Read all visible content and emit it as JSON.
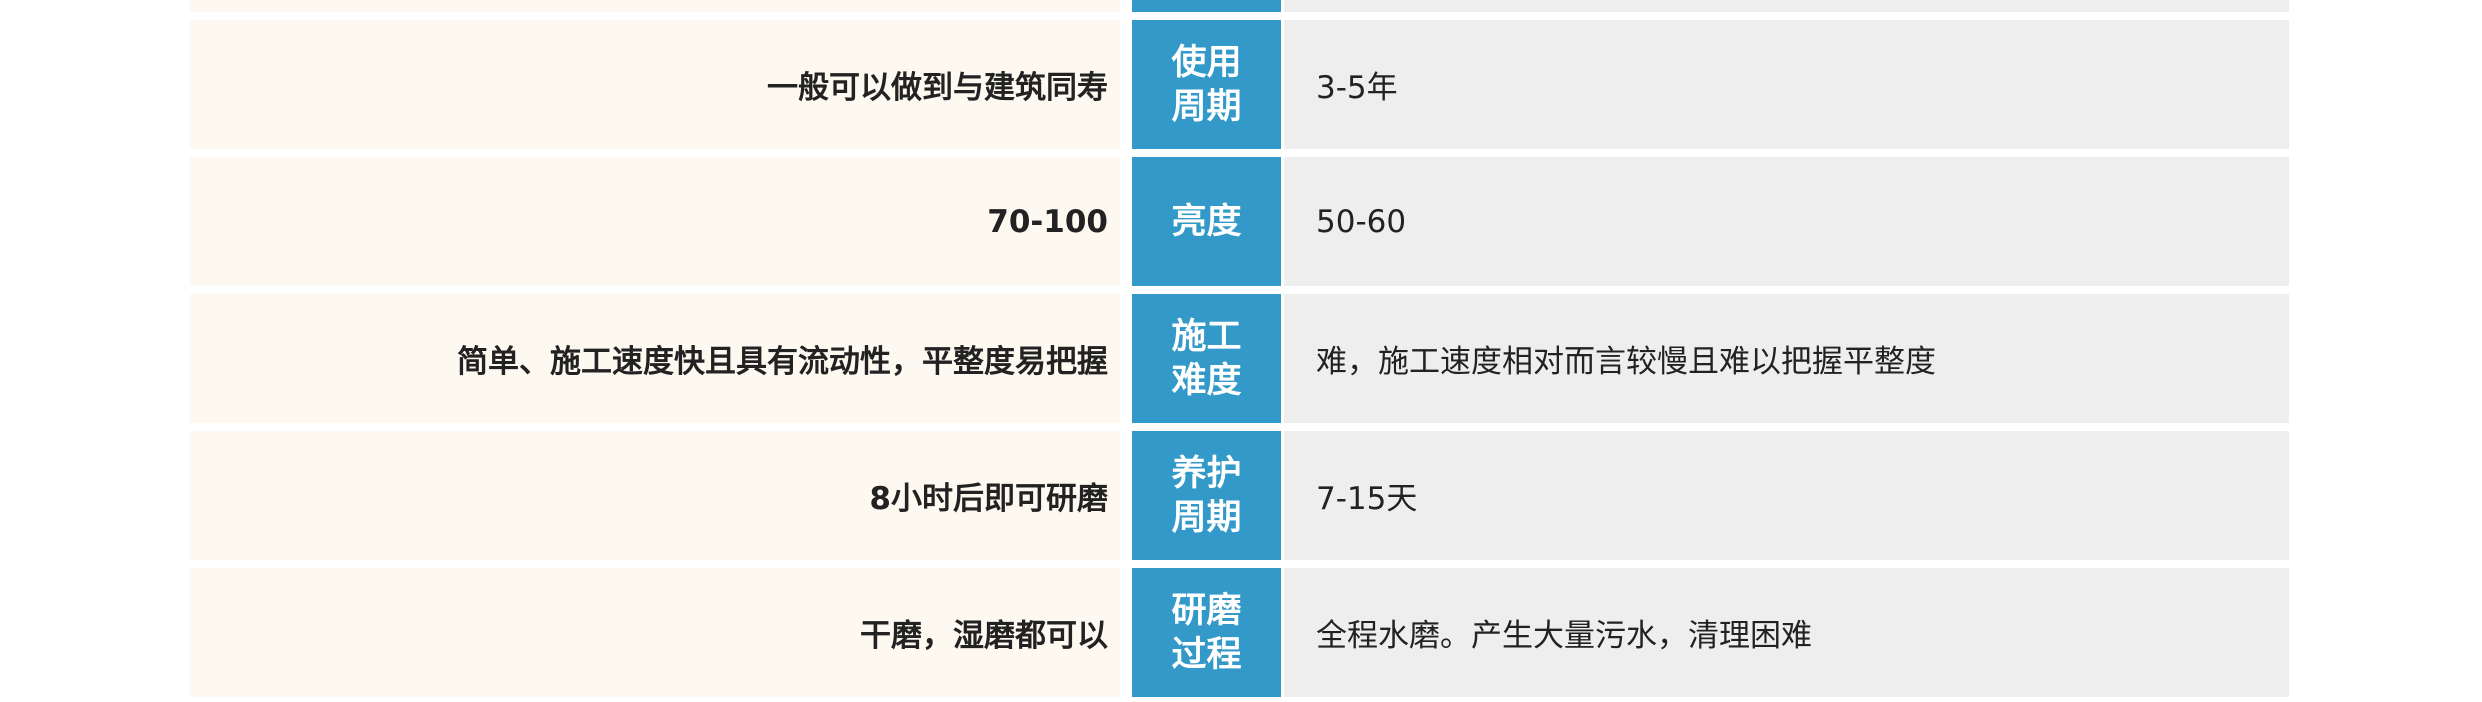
{
  "rows": [
    {
      "left": "",
      "label": "",
      "right": ""
    },
    {
      "left": "一般可以做到与建筑同寿",
      "label": "使用\n周期",
      "right": "3-5年"
    },
    {
      "left": "70-100",
      "label": "亮度",
      "right": "50-60"
    },
    {
      "left": "简单、施工速度快且具有流动性，平整度易把握",
      "label": "施工\n难度",
      "right": "难，施工速度相对而言较慢且难以把握平整度"
    },
    {
      "left": "8小时后即可研磨",
      "label": "养护\n周期",
      "right": "7-15天"
    },
    {
      "left": "干磨，湿磨都可以",
      "label": "研磨\n过程",
      "right": "全程水磨。产生大量污水，清理困难"
    }
  ]
}
